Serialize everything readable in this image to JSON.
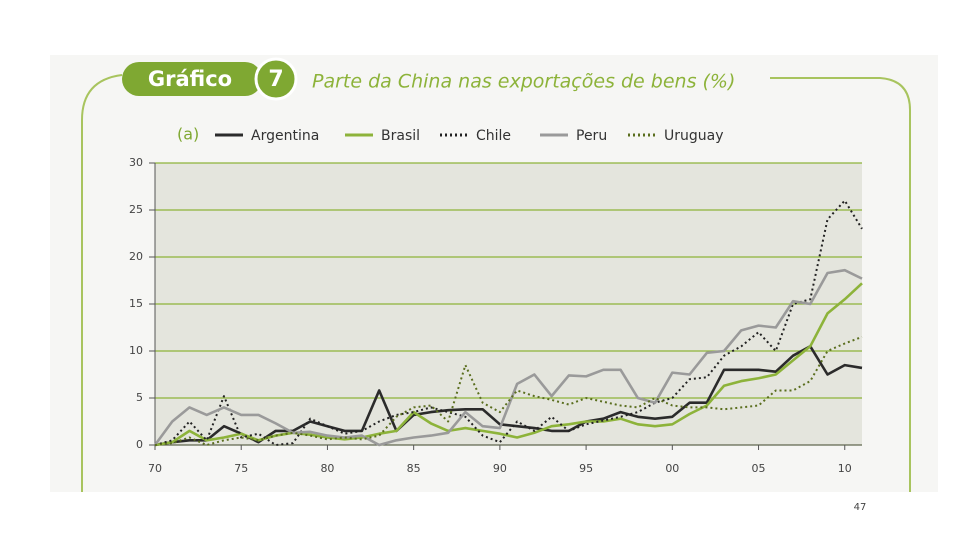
{
  "header": {
    "badge": "Gráfico",
    "number": "7",
    "title": "Parte da China nas exportações de bens (%)"
  },
  "page_number": "47",
  "chart_data": {
    "type": "line",
    "panel_label": "(a)",
    "x": [
      1970,
      1971,
      1972,
      1973,
      1974,
      1975,
      1976,
      1977,
      1978,
      1979,
      1980,
      1981,
      1982,
      1983,
      1984,
      1985,
      1986,
      1987,
      1988,
      1989,
      1990,
      1991,
      1992,
      1993,
      1994,
      1995,
      1996,
      1997,
      1998,
      1999,
      2000,
      2001,
      2002,
      2003,
      2004,
      2005,
      2006,
      2007,
      2008,
      2009,
      2010,
      2011
    ],
    "series": [
      {
        "name": "Argentina",
        "color": "#2b2b2b",
        "style": "solid",
        "values": [
          0,
          0.3,
          0.5,
          0.5,
          2,
          1.2,
          0.3,
          1.5,
          1.5,
          2.5,
          2,
          1.5,
          1.5,
          5.8,
          1.5,
          3.2,
          3.5,
          3.7,
          3.8,
          3.8,
          2.2,
          2,
          1.8,
          1.5,
          1.5,
          2.5,
          2.8,
          3.5,
          3,
          2.8,
          3,
          4.5,
          4.5,
          8,
          8,
          8,
          7.8,
          9.5,
          10.5,
          7.5,
          8.5,
          8.2
        ]
      },
      {
        "name": "Brasil",
        "color": "#8db33a",
        "style": "solid",
        "values": [
          0,
          0.3,
          1.5,
          0.5,
          0.8,
          1.2,
          0.5,
          1,
          1.3,
          1.1,
          0.8,
          0.6,
          0.8,
          1.2,
          1.5,
          3.5,
          2.3,
          1.5,
          1.8,
          1.5,
          1.2,
          0.8,
          1.3,
          2,
          2.2,
          2.5,
          2.5,
          2.8,
          2.2,
          2,
          2.2,
          3.3,
          4.2,
          6.3,
          6.8,
          7.1,
          7.5,
          9,
          10.5,
          14,
          15.5,
          17.2
        ]
      },
      {
        "name": "Chile",
        "color": "#222222",
        "style": "dotted",
        "values": [
          0,
          0.5,
          2.5,
          0.5,
          5.2,
          0.8,
          1.2,
          0,
          0.2,
          2.8,
          2,
          1.2,
          1.5,
          2.5,
          3.2,
          3.5,
          4,
          3.5,
          3,
          1,
          0.3,
          2.5,
          1.5,
          3,
          1.5,
          2.2,
          2.6,
          3,
          3.5,
          4.5,
          5,
          7,
          7.2,
          9.5,
          10.5,
          12,
          10,
          15,
          15.5,
          24,
          26,
          23
        ]
      },
      {
        "name": "Peru",
        "color": "#9a9a9a",
        "style": "solid",
        "values": [
          0,
          2.5,
          4,
          3.2,
          4,
          3.2,
          3.2,
          2.3,
          1.3,
          1.4,
          1,
          0.8,
          1,
          0,
          0.5,
          0.8,
          1,
          1.3,
          3.5,
          2,
          1.8,
          6.5,
          7.5,
          5.2,
          7.4,
          7.3,
          8,
          8,
          5,
          4.5,
          7.7,
          7.5,
          9.8,
          10,
          12.2,
          12.7,
          12.5,
          15.3,
          15,
          18.3,
          18.6,
          17.7
        ]
      },
      {
        "name": "Uruguay",
        "color": "#5a6e1e",
        "style": "dotted",
        "values": [
          0,
          0.2,
          0.8,
          0,
          0.5,
          0.8,
          0.5,
          1,
          1.3,
          1,
          0.6,
          0.8,
          0.6,
          1,
          3,
          4,
          4.2,
          2.5,
          8.5,
          4.5,
          3.5,
          5.8,
          5.2,
          4.8,
          4.3,
          5,
          4.6,
          4.2,
          4,
          5,
          4.2,
          4,
          4,
          3.8,
          4,
          4.2,
          5.8,
          5.8,
          6.8,
          10,
          10.8,
          11.5
        ]
      }
    ],
    "xlim": [
      1970,
      2011
    ],
    "xticks": [
      {
        "value": 1970,
        "label": "70"
      },
      {
        "value": 1975,
        "label": "75"
      },
      {
        "value": 1980,
        "label": "80"
      },
      {
        "value": 1985,
        "label": "85"
      },
      {
        "value": 1990,
        "label": "90"
      },
      {
        "value": 1995,
        "label": "95"
      },
      {
        "value": 2000,
        "label": "00"
      },
      {
        "value": 2005,
        "label": "05"
      },
      {
        "value": 2010,
        "label": "10"
      }
    ],
    "ylim": [
      0,
      30
    ],
    "yticks": [
      0,
      5,
      10,
      15,
      20,
      25,
      30
    ],
    "grid": true,
    "grid_color": "#8db33a"
  }
}
